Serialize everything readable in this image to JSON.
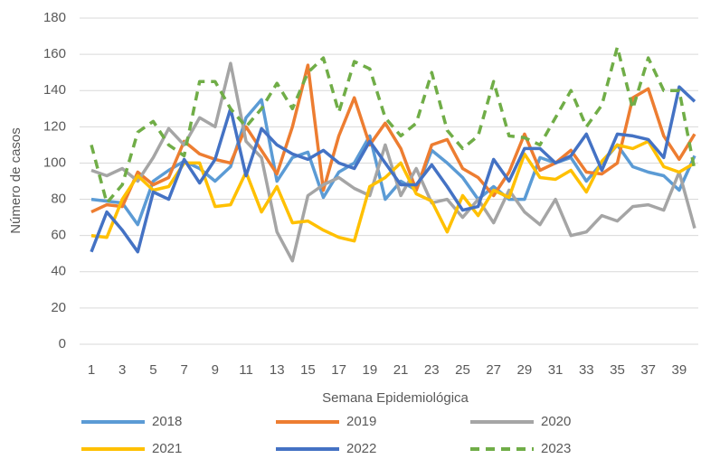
{
  "chart_data": {
    "type": "line",
    "x_label": "Semana Epidemiológica",
    "y_label": "Número de casos",
    "x": [
      1,
      2,
      3,
      4,
      5,
      6,
      7,
      8,
      9,
      10,
      11,
      12,
      13,
      14,
      15,
      16,
      17,
      18,
      19,
      20,
      21,
      22,
      23,
      24,
      25,
      26,
      27,
      28,
      29,
      30,
      31,
      32,
      33,
      34,
      35,
      36,
      37,
      38,
      39,
      40
    ],
    "xlim": [
      1,
      40
    ],
    "xticks": [
      1,
      3,
      5,
      7,
      9,
      11,
      13,
      15,
      17,
      19,
      21,
      23,
      25,
      27,
      29,
      31,
      33,
      35,
      37,
      39
    ],
    "ylim": [
      0,
      180
    ],
    "yticks": [
      0,
      20,
      40,
      60,
      80,
      100,
      120,
      140,
      160,
      180
    ],
    "grid": true,
    "legend": "bottom",
    "series": [
      {
        "name": "2018",
        "color": "#5b9bd5",
        "dash": false,
        "values": [
          80,
          79,
          78,
          66,
          90,
          96,
          101,
          97,
          90,
          98,
          125,
          135,
          90,
          103,
          106,
          81,
          95,
          100,
          115,
          80,
          90,
          85,
          107,
          100,
          92,
          80,
          87,
          80,
          80,
          103,
          100,
          103,
          90,
          100,
          110,
          98,
          95,
          93,
          85,
          104
        ]
      },
      {
        "name": "2019",
        "color": "#ed7d31",
        "dash": false,
        "values": [
          73,
          77,
          76,
          95,
          88,
          92,
          112,
          105,
          102,
          100,
          120,
          107,
          94,
          120,
          154,
          85,
          115,
          136,
          110,
          122,
          108,
          85,
          110,
          113,
          97,
          92,
          82,
          95,
          116,
          96,
          100,
          107,
          95,
          94,
          100,
          136,
          141,
          115,
          102,
          116
        ]
      },
      {
        "name": "2020",
        "color": "#a5a5a5",
        "dash": false,
        "values": [
          96,
          93,
          97,
          90,
          103,
          119,
          110,
          125,
          120,
          155,
          112,
          103,
          62,
          46,
          82,
          88,
          92,
          86,
          82,
          110,
          82,
          97,
          78,
          80,
          70,
          80,
          67,
          85,
          73,
          66,
          80,
          60,
          62,
          71,
          68,
          76,
          77,
          74,
          95,
          64
        ]
      },
      {
        "name": "2021",
        "color": "#ffc000",
        "dash": false,
        "values": [
          60,
          59,
          80,
          93,
          85,
          87,
          100,
          100,
          76,
          77,
          95,
          73,
          87,
          67,
          68,
          63,
          59,
          57,
          87,
          92,
          100,
          83,
          79,
          62,
          82,
          71,
          85,
          81,
          105,
          92,
          91,
          96,
          84,
          101,
          110,
          108,
          112,
          98,
          95,
          100
        ]
      },
      {
        "name": "2022",
        "color": "#4472c4",
        "dash": false,
        "values": [
          51,
          73,
          63,
          51,
          84,
          80,
          102,
          89,
          102,
          130,
          93,
          119,
          110,
          105,
          102,
          107,
          100,
          97,
          112,
          100,
          88,
          88,
          99,
          87,
          74,
          76,
          102,
          90,
          108,
          108,
          100,
          104,
          116,
          96,
          116,
          115,
          113,
          103,
          142,
          134
        ]
      },
      {
        "name": "2023",
        "color": "#70ad47",
        "dash": true,
        "values": [
          110,
          78,
          88,
          117,
          123,
          110,
          104,
          145,
          145,
          130,
          120,
          130,
          144,
          130,
          150,
          158,
          128,
          156,
          152,
          125,
          115,
          122,
          150,
          118,
          108,
          115,
          145,
          115,
          114,
          110,
          125,
          140,
          120,
          132,
          164,
          130,
          158,
          140,
          140,
          96
        ]
      }
    ]
  }
}
